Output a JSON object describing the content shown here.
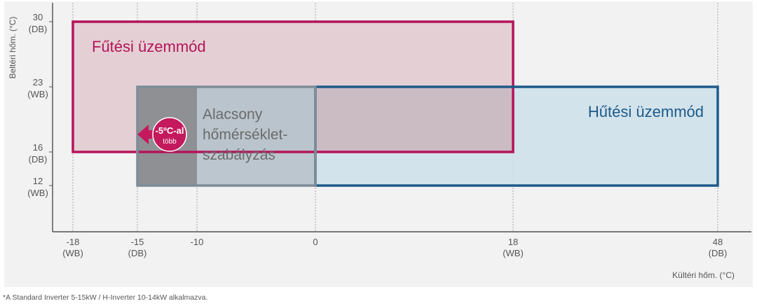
{
  "chart_data": {
    "type": "range-boxes",
    "xlabel": "Kültéri hőm. (°C)",
    "ylabel": "Beltéri hőm. (°C)",
    "x_ticks": [
      {
        "value": -18,
        "label": "-18",
        "sub": "(WB)"
      },
      {
        "value": -15,
        "label": "-15",
        "sub": "(DB)"
      },
      {
        "value": -10,
        "label": "-10",
        "sub": ""
      },
      {
        "value": 0,
        "label": "0",
        "sub": ""
      },
      {
        "value": 18,
        "label": "18",
        "sub": "(WB)"
      },
      {
        "value": 48,
        "label": "48",
        "sub": "(DB)"
      }
    ],
    "y_ticks": [
      {
        "value": 30,
        "label": "30",
        "sub": "(DB)"
      },
      {
        "value": 23,
        "label": "23",
        "sub": "(WB)"
      },
      {
        "value": 16,
        "label": "16",
        "sub": "(DB)"
      },
      {
        "value": 12,
        "label": "12",
        "sub": "(WB)"
      }
    ],
    "regions": [
      {
        "name": "Fűtési üzemmód",
        "x": [
          -18,
          18
        ],
        "y": [
          16,
          30
        ],
        "stroke": "#b5135a",
        "fill": "#e4d0d4"
      },
      {
        "name": "Hűtési üzemmód",
        "x": [
          0,
          48
        ],
        "y": [
          12,
          23
        ],
        "stroke": "#1c5a8a",
        "fill": "#cfe1ea"
      },
      {
        "name": "Alacsony hőmérséklet-szabályzás",
        "x": [
          -15,
          0
        ],
        "y": [
          12,
          23
        ],
        "stroke": "#7d8c98",
        "fill": "#b7c3cb",
        "extension_x": [
          -15,
          -10
        ],
        "extension_fill": "#8f9094"
      }
    ],
    "grid": "dashed vertical lines at x ticks",
    "badge": {
      "line1": "-5ºC-al",
      "line2": "több",
      "color": "#c41a5d"
    }
  },
  "labels": {
    "heating": "Fűtési üzemmód",
    "cooling": "Hűtési üzemmód",
    "low_lines": [
      "Alacsony",
      "hőmérséklet-",
      "szabályzás"
    ]
  },
  "footnote": "*A Standard Inverter 5-15kW / H-Inverter 10-14kW alkalmazva."
}
